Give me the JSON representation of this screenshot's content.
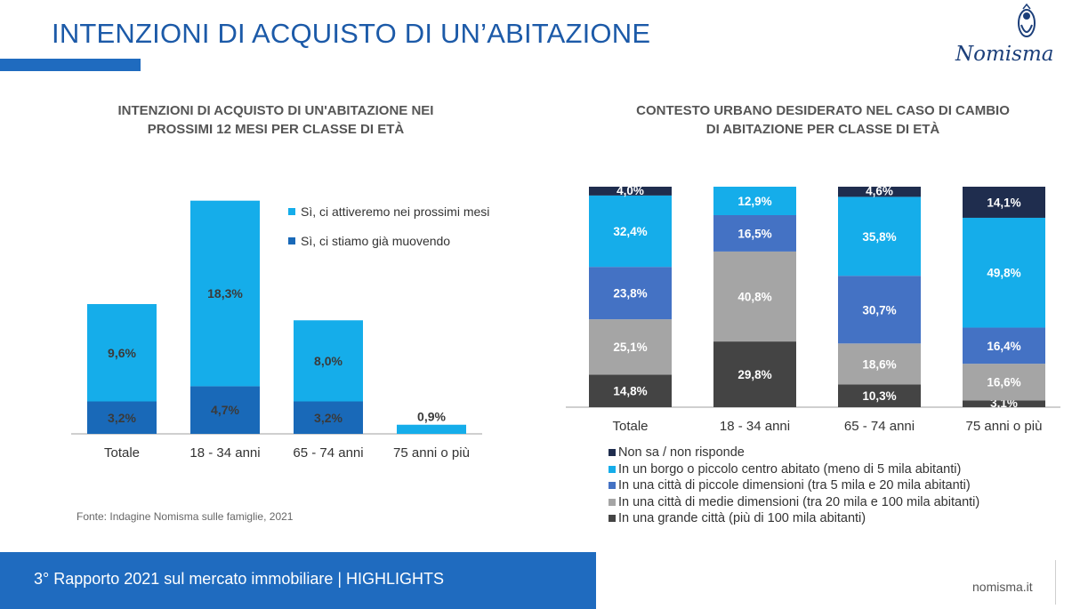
{
  "header": {
    "title": "INTENZIONI DI ACQUISTO DI UN’ABITAZIONE",
    "logo_text": "Nomisma"
  },
  "footer": {
    "report_label": "3° Rapporto 2021 sul mercato immobiliare | HIGHLIGHTS",
    "website": "nomisma.it"
  },
  "source_note": "Fonte: Indagine Nomisma sulle famiglie, 2021",
  "colors": {
    "title_blue": "#1c5aa8",
    "light_blue": "#15adea",
    "mid_blue": "#1969b8",
    "royal_blue": "#4472c4",
    "navy": "#1f2d4e",
    "gray": "#a5a5a5",
    "dark_gray": "#444444"
  },
  "chart_data": [
    {
      "type": "bar",
      "stacked": true,
      "title_lines": [
        "INTENZIONI DI ACQUISTO DI UN'ABITAZIONE NEI",
        "PROSSIMI 12 MESI PER CLASSE DI ETÀ"
      ],
      "categories": [
        "Totale",
        "18 - 34 anni",
        "65 - 74 anni",
        "75 anni o più"
      ],
      "series": [
        {
          "name": "Sì, ci stiamo già muovendo",
          "values": [
            3.2,
            4.7,
            3.2,
            null
          ],
          "labels": [
            "3,2%",
            "4,7%",
            "3,2%",
            ""
          ],
          "color": "#1969b8"
        },
        {
          "name": "Sì, ci attiveremo nei prossimi mesi",
          "values": [
            9.6,
            18.3,
            8.0,
            0.9
          ],
          "labels": [
            "9,6%",
            "18,3%",
            "8,0%",
            "0,9%"
          ],
          "color": "#15adea"
        }
      ],
      "legend_order": [
        1,
        0
      ],
      "ylim": [
        0,
        23.5
      ],
      "grid": false,
      "legend": "top-right"
    },
    {
      "type": "bar",
      "stacked": true,
      "normalized": true,
      "title_lines": [
        "CONTESTO URBANO DESIDERATO NEL CASO DI CAMBIO",
        "DI ABITAZIONE PER CLASSE DI ETÀ"
      ],
      "categories": [
        "Totale",
        "18 - 34 anni",
        "65 - 74 anni",
        "75 anni o più"
      ],
      "series": [
        {
          "name": "In una grande città (più di 100 mila abitanti)",
          "values": [
            14.8,
            29.8,
            10.3,
            3.1
          ],
          "labels": [
            "14,8%",
            "29,8%",
            "10,3%",
            "3,1%"
          ],
          "color": "#444444"
        },
        {
          "name": "In una città di medie dimensioni (tra 20 mila e 100 mila abitanti)",
          "values": [
            25.1,
            40.8,
            18.6,
            16.6
          ],
          "labels": [
            "25,1%",
            "40,8%",
            "18,6%",
            "16,6%"
          ],
          "color": "#a5a5a5"
        },
        {
          "name": "In una città di piccole dimensioni (tra 5 mila e 20 mila abitanti)",
          "values": [
            23.8,
            16.5,
            30.7,
            16.4
          ],
          "labels": [
            "23,8%",
            "16,5%",
            "30,7%",
            "16,4%"
          ],
          "color": "#4472c4"
        },
        {
          "name": "In un borgo o piccolo centro abitato (meno di 5 mila abitanti)",
          "values": [
            32.4,
            12.9,
            35.8,
            49.8
          ],
          "labels": [
            "32,4%",
            "12,9%",
            "35,8%",
            "49,8%"
          ],
          "color": "#15adea"
        },
        {
          "name": "Non sa / non risponde",
          "values": [
            4.0,
            0,
            4.6,
            14.1
          ],
          "labels": [
            "4,0%",
            "",
            "4,6%",
            "14,1%"
          ],
          "color": "#1f2d4e"
        }
      ],
      "legend_order": [
        4,
        3,
        2,
        1,
        0
      ],
      "ylim": [
        0,
        100
      ],
      "grid": false,
      "legend": "bottom"
    }
  ]
}
